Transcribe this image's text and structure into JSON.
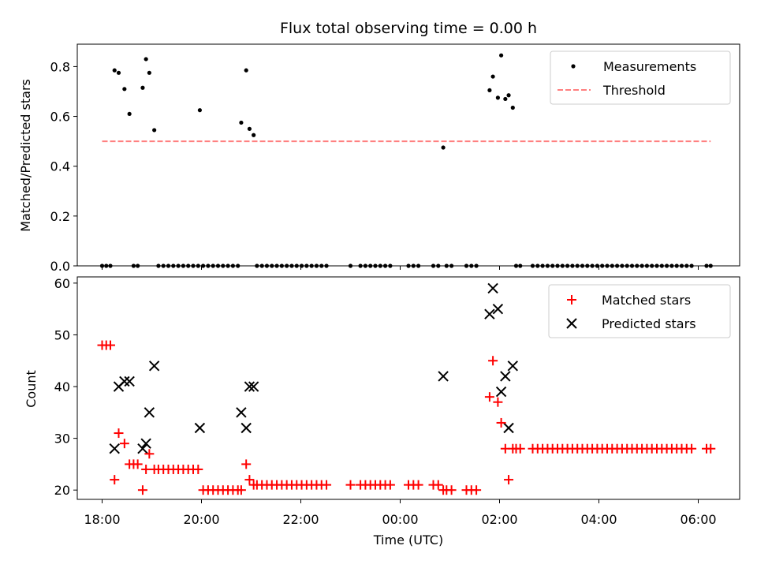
{
  "chart_data": [
    {
      "type": "scatter",
      "title": "Flux total observing time = 0.00 h",
      "xlabel": "",
      "ylabel": "Matched/Predicted stars",
      "xlim": [
        "17:30",
        "06:50"
      ],
      "ylim": [
        0,
        0.89
      ],
      "yticks": [
        0.0,
        0.2,
        0.4,
        0.6,
        0.8
      ],
      "yticklabels": [
        "0.0",
        "0.2",
        "0.4",
        "0.6",
        "0.8"
      ],
      "legend_position": "upper right",
      "series": [
        {
          "name": "Measurements",
          "marker": "dot",
          "color": "#000000",
          "points": [
            [
              "18:00",
              0
            ],
            [
              "18:05",
              0
            ],
            [
              "18:10",
              0
            ],
            [
              "18:15",
              0.785
            ],
            [
              "18:20",
              0.775
            ],
            [
              "18:27",
              0.71
            ],
            [
              "18:33",
              0.61
            ],
            [
              "18:38",
              0
            ],
            [
              "18:43",
              0
            ],
            [
              "18:49",
              0.715
            ],
            [
              "18:53",
              0.83
            ],
            [
              "18:57",
              0.775
            ],
            [
              "19:03",
              0.545
            ],
            [
              "19:08",
              0
            ],
            [
              "19:14",
              0
            ],
            [
              "19:20",
              0
            ],
            [
              "19:26",
              0
            ],
            [
              "19:32",
              0
            ],
            [
              "19:38",
              0
            ],
            [
              "19:44",
              0
            ],
            [
              "19:50",
              0
            ],
            [
              "19:56",
              0
            ],
            [
              "19:58",
              0.625
            ],
            [
              "20:02",
              0
            ],
            [
              "20:08",
              0
            ],
            [
              "20:14",
              0
            ],
            [
              "20:20",
              0
            ],
            [
              "20:26",
              0
            ],
            [
              "20:32",
              0
            ],
            [
              "20:38",
              0
            ],
            [
              "20:44",
              0
            ],
            [
              "20:48",
              0.575
            ],
            [
              "20:54",
              0.785
            ],
            [
              "20:58",
              0.55
            ],
            [
              "21:03",
              0.525
            ],
            [
              "21:07",
              0
            ],
            [
              "21:13",
              0
            ],
            [
              "21:19",
              0
            ],
            [
              "21:25",
              0
            ],
            [
              "21:31",
              0
            ],
            [
              "21:37",
              0
            ],
            [
              "21:43",
              0
            ],
            [
              "21:49",
              0
            ],
            [
              "21:55",
              0
            ],
            [
              "22:01",
              0
            ],
            [
              "22:07",
              0
            ],
            [
              "22:13",
              0
            ],
            [
              "22:19",
              0
            ],
            [
              "22:25",
              0
            ],
            [
              "22:31",
              0
            ],
            [
              "23:00",
              0
            ],
            [
              "23:12",
              0
            ],
            [
              "23:18",
              0
            ],
            [
              "23:24",
              0
            ],
            [
              "23:30",
              0
            ],
            [
              "23:36",
              0
            ],
            [
              "23:42",
              0
            ],
            [
              "23:48",
              0
            ],
            [
              "00:10",
              0
            ],
            [
              "00:16",
              0
            ],
            [
              "00:22",
              0
            ],
            [
              "00:40",
              0
            ],
            [
              "00:46",
              0
            ],
            [
              "00:52",
              0.475
            ],
            [
              "00:56",
              0
            ],
            [
              "01:02",
              0
            ],
            [
              "01:20",
              0
            ],
            [
              "01:26",
              0
            ],
            [
              "01:32",
              0
            ],
            [
              "01:48",
              0.705
            ],
            [
              "01:52",
              0.76
            ],
            [
              "01:58",
              0.675
            ],
            [
              "02:02",
              0.845
            ],
            [
              "02:07",
              0.67
            ],
            [
              "02:11",
              0.685
            ],
            [
              "02:16",
              0.635
            ],
            [
              "02:20",
              0
            ],
            [
              "02:25",
              0
            ],
            [
              "02:40",
              0
            ],
            [
              "02:46",
              0
            ],
            [
              "02:52",
              0
            ],
            [
              "02:58",
              0
            ],
            [
              "03:04",
              0
            ],
            [
              "03:10",
              0
            ],
            [
              "03:16",
              0
            ],
            [
              "03:22",
              0
            ],
            [
              "03:28",
              0
            ],
            [
              "03:34",
              0
            ],
            [
              "03:40",
              0
            ],
            [
              "03:46",
              0
            ],
            [
              "03:52",
              0
            ],
            [
              "03:58",
              0
            ],
            [
              "04:04",
              0
            ],
            [
              "04:10",
              0
            ],
            [
              "04:16",
              0
            ],
            [
              "04:22",
              0
            ],
            [
              "04:28",
              0
            ],
            [
              "04:34",
              0
            ],
            [
              "04:40",
              0
            ],
            [
              "04:46",
              0
            ],
            [
              "04:52",
              0
            ],
            [
              "04:58",
              0
            ],
            [
              "05:04",
              0
            ],
            [
              "05:10",
              0
            ],
            [
              "05:16",
              0
            ],
            [
              "05:22",
              0
            ],
            [
              "05:28",
              0
            ],
            [
              "05:34",
              0
            ],
            [
              "05:40",
              0
            ],
            [
              "05:46",
              0
            ],
            [
              "05:52",
              0
            ],
            [
              "06:10",
              0
            ],
            [
              "06:15",
              0
            ]
          ]
        },
        {
          "name": "Threshold",
          "line": "dashed",
          "color": "#ff7f7f",
          "points": [
            [
              "18:00",
              0.5
            ],
            [
              "06:15",
              0.5
            ]
          ]
        }
      ]
    },
    {
      "type": "scatter",
      "title": "",
      "xlabel": "Time (UTC)",
      "ylabel": "Count",
      "xlim": [
        "17:30",
        "06:50"
      ],
      "ylim": [
        18.2,
        61.2
      ],
      "yticks": [
        20,
        30,
        40,
        50,
        60
      ],
      "yticklabels": [
        "20",
        "30",
        "40",
        "50",
        "60"
      ],
      "xticks": [
        "18:00",
        "20:00",
        "22:00",
        "00:00",
        "02:00",
        "04:00",
        "06:00"
      ],
      "legend_position": "upper right",
      "series": [
        {
          "name": "Matched stars",
          "marker": "plus",
          "color": "#ff0000",
          "points": [
            [
              "18:00",
              48
            ],
            [
              "18:05",
              48
            ],
            [
              "18:10",
              48
            ],
            [
              "18:15",
              22
            ],
            [
              "18:20",
              31
            ],
            [
              "18:27",
              29
            ],
            [
              "18:33",
              25
            ],
            [
              "18:38",
              25
            ],
            [
              "18:43",
              25
            ],
            [
              "18:49",
              20
            ],
            [
              "18:53",
              24
            ],
            [
              "18:57",
              27
            ],
            [
              "19:03",
              24
            ],
            [
              "19:08",
              24
            ],
            [
              "19:14",
              24
            ],
            [
              "19:20",
              24
            ],
            [
              "19:26",
              24
            ],
            [
              "19:32",
              24
            ],
            [
              "19:38",
              24
            ],
            [
              "19:44",
              24
            ],
            [
              "19:50",
              24
            ],
            [
              "19:56",
              24
            ],
            [
              "20:02",
              20
            ],
            [
              "20:08",
              20
            ],
            [
              "20:14",
              20
            ],
            [
              "20:20",
              20
            ],
            [
              "20:26",
              20
            ],
            [
              "20:32",
              20
            ],
            [
              "20:38",
              20
            ],
            [
              "20:44",
              20
            ],
            [
              "20:48",
              20
            ],
            [
              "20:54",
              25
            ],
            [
              "20:58",
              22
            ],
            [
              "21:03",
              21
            ],
            [
              "21:07",
              21
            ],
            [
              "21:13",
              21
            ],
            [
              "21:19",
              21
            ],
            [
              "21:25",
              21
            ],
            [
              "21:31",
              21
            ],
            [
              "21:37",
              21
            ],
            [
              "21:43",
              21
            ],
            [
              "21:49",
              21
            ],
            [
              "21:55",
              21
            ],
            [
              "22:01",
              21
            ],
            [
              "22:07",
              21
            ],
            [
              "22:13",
              21
            ],
            [
              "22:19",
              21
            ],
            [
              "22:25",
              21
            ],
            [
              "22:31",
              21
            ],
            [
              "23:00",
              21
            ],
            [
              "23:12",
              21
            ],
            [
              "23:18",
              21
            ],
            [
              "23:24",
              21
            ],
            [
              "23:30",
              21
            ],
            [
              "23:36",
              21
            ],
            [
              "23:42",
              21
            ],
            [
              "23:48",
              21
            ],
            [
              "00:10",
              21
            ],
            [
              "00:16",
              21
            ],
            [
              "00:22",
              21
            ],
            [
              "00:40",
              21
            ],
            [
              "00:46",
              21
            ],
            [
              "00:52",
              20
            ],
            [
              "00:56",
              20
            ],
            [
              "01:02",
              20
            ],
            [
              "01:20",
              20
            ],
            [
              "01:26",
              20
            ],
            [
              "01:32",
              20
            ],
            [
              "01:48",
              38
            ],
            [
              "01:52",
              45
            ],
            [
              "01:58",
              37
            ],
            [
              "02:02",
              33
            ],
            [
              "02:07",
              28
            ],
            [
              "02:11",
              22
            ],
            [
              "02:16",
              28
            ],
            [
              "02:20",
              28
            ],
            [
              "02:25",
              28
            ],
            [
              "02:40",
              28
            ],
            [
              "02:46",
              28
            ],
            [
              "02:52",
              28
            ],
            [
              "02:58",
              28
            ],
            [
              "03:04",
              28
            ],
            [
              "03:10",
              28
            ],
            [
              "03:16",
              28
            ],
            [
              "03:22",
              28
            ],
            [
              "03:28",
              28
            ],
            [
              "03:34",
              28
            ],
            [
              "03:40",
              28
            ],
            [
              "03:46",
              28
            ],
            [
              "03:52",
              28
            ],
            [
              "03:58",
              28
            ],
            [
              "04:04",
              28
            ],
            [
              "04:10",
              28
            ],
            [
              "04:16",
              28
            ],
            [
              "04:22",
              28
            ],
            [
              "04:28",
              28
            ],
            [
              "04:34",
              28
            ],
            [
              "04:40",
              28
            ],
            [
              "04:46",
              28
            ],
            [
              "04:52",
              28
            ],
            [
              "04:58",
              28
            ],
            [
              "05:04",
              28
            ],
            [
              "05:10",
              28
            ],
            [
              "05:16",
              28
            ],
            [
              "05:22",
              28
            ],
            [
              "05:28",
              28
            ],
            [
              "05:34",
              28
            ],
            [
              "05:40",
              28
            ],
            [
              "05:46",
              28
            ],
            [
              "05:52",
              28
            ],
            [
              "06:10",
              28
            ],
            [
              "06:15",
              28
            ]
          ]
        },
        {
          "name": "Predicted stars",
          "marker": "x",
          "color": "#000000",
          "points": [
            [
              "18:15",
              28
            ],
            [
              "18:20",
              40
            ],
            [
              "18:27",
              41
            ],
            [
              "18:33",
              41
            ],
            [
              "18:49",
              28
            ],
            [
              "18:53",
              29
            ],
            [
              "18:57",
              35
            ],
            [
              "19:03",
              44
            ],
            [
              "19:58",
              32
            ],
            [
              "20:48",
              35
            ],
            [
              "20:54",
              32
            ],
            [
              "20:58",
              40
            ],
            [
              "21:03",
              40
            ],
            [
              "00:52",
              42
            ],
            [
              "01:48",
              54
            ],
            [
              "01:52",
              59
            ],
            [
              "01:58",
              55
            ],
            [
              "02:02",
              39
            ],
            [
              "02:07",
              42
            ],
            [
              "02:11",
              32
            ],
            [
              "02:16",
              44
            ]
          ]
        }
      ]
    }
  ]
}
